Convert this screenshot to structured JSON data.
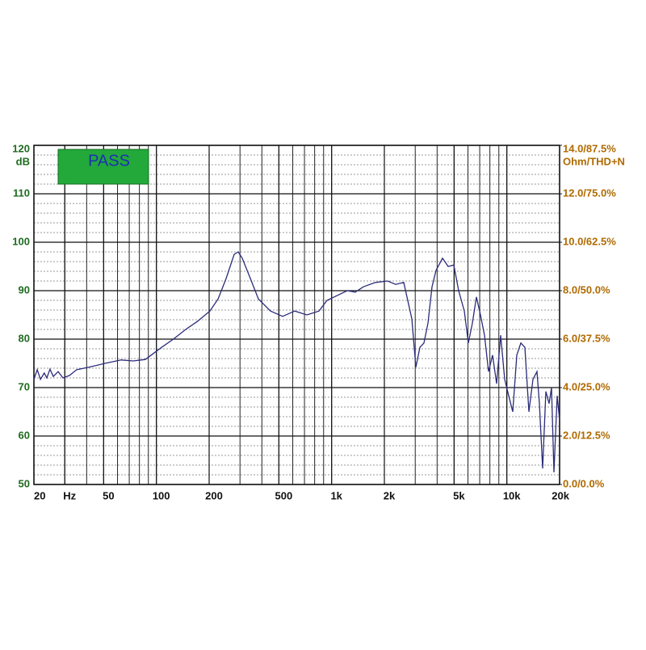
{
  "chart_data": {
    "type": "line",
    "badge": "PASS",
    "ylabel": "dB",
    "y2label": "Ohm/THD+N",
    "xscale": "log",
    "color": "#2b2b7a",
    "grid": true,
    "xlim": [
      20,
      20000
    ],
    "xticks": [
      20,
      {
        "value": 30,
        "label": "Hz"
      },
      50,
      100,
      200,
      500,
      {
        "value": 1000,
        "label": "1k"
      },
      {
        "value": 2000,
        "label": "2k"
      },
      {
        "value": 5000,
        "label": "5k"
      },
      {
        "value": 10000,
        "label": "10k"
      },
      {
        "value": 20000,
        "label": "20k"
      }
    ],
    "ylim": [
      50,
      120
    ],
    "yticks": [
      50,
      60,
      70,
      80,
      90,
      100,
      110,
      120
    ],
    "y2lim": [
      0,
      14
    ],
    "y2ticks": [
      {
        "value": 0,
        "label": "0.0/0.0%"
      },
      {
        "value": 2,
        "label": "2.0/12.5%"
      },
      {
        "value": 4,
        "label": "4.0/25.0%"
      },
      {
        "value": 6,
        "label": "6.0/37.5%"
      },
      {
        "value": 8,
        "label": "8.0/50.0%"
      },
      {
        "value": 10,
        "label": "10.0/62.5%"
      },
      {
        "value": 12,
        "label": "12.0/75.0%"
      },
      {
        "value": 14,
        "label": "14.0/87.5%"
      }
    ],
    "x": [
      20,
      20.9,
      21.8,
      22.9,
      23.7,
      24.7,
      25.8,
      27.5,
      29.3,
      31.9,
      35.1,
      41.2,
      50.9,
      62.9,
      73.8,
      86.5,
      107,
      125,
      147,
      172,
      202,
      225,
      250,
      278,
      293,
      309,
      344,
      382,
      448,
      525,
      616,
      722,
      847,
      942,
      1104,
      1228,
      1365,
      1518,
      1780,
      2086,
      2320,
      2580,
      2869,
      3025,
      3190,
      3364,
      3547,
      3741,
      3944,
      4295,
      4624,
      4981,
      5309,
      5720,
      6030,
      6358,
      6705,
      7071,
      7455,
      7862,
      8290,
      8742,
      9218,
      9720,
      10250,
      10809,
      11398,
      12017,
      12670,
      13362,
      14088,
      14860,
      15345,
      16010,
      16700,
      17425,
      17985,
      18570,
      19370,
      20000
    ],
    "values": [
      71.7,
      73.7,
      71.7,
      73,
      72,
      73.8,
      72.3,
      73.3,
      72,
      72.5,
      73.7,
      74.2,
      75,
      75.7,
      75.5,
      75.8,
      78.3,
      80,
      82,
      83.7,
      85.8,
      88.3,
      92.5,
      97.5,
      98,
      96.7,
      92.5,
      88.3,
      85.8,
      84.7,
      85.8,
      85,
      85.8,
      88,
      89.2,
      90,
      89.7,
      90.8,
      91.7,
      92,
      91.3,
      91.7,
      84.2,
      74.2,
      78.3,
      79.2,
      83.3,
      90.8,
      94.2,
      96.7,
      95,
      95.3,
      90,
      85.8,
      79.2,
      83.3,
      88.7,
      85,
      80.8,
      73.3,
      76.7,
      70.8,
      80.8,
      71.7,
      68.3,
      65,
      76.7,
      79.2,
      78.3,
      65,
      71.7,
      73.3,
      66.7,
      53.3,
      69.2,
      66.7,
      70,
      52.5,
      68.3,
      63.3
    ]
  }
}
